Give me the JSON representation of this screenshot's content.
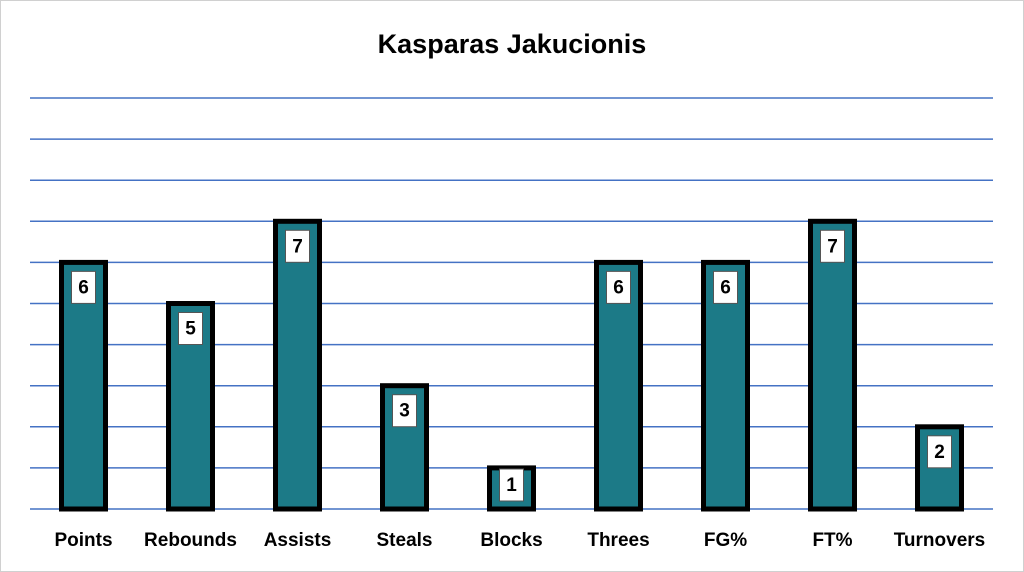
{
  "chart_data": {
    "type": "bar",
    "title": "Kasparas Jakucionis",
    "categories": [
      "Points",
      "Rebounds",
      "Assists",
      "Steals",
      "Blocks",
      "Threes",
      "FG%",
      "FT%",
      "Turnovers"
    ],
    "values": [
      6,
      5,
      7,
      3,
      1,
      6,
      6,
      7,
      2
    ],
    "color": "#1c7a87",
    "ylim": [
      0,
      10
    ],
    "yticks": [
      0,
      1,
      2,
      3,
      4,
      5,
      6,
      7,
      8,
      9,
      10
    ],
    "grid": true,
    "grid_color": "#4472c4"
  }
}
